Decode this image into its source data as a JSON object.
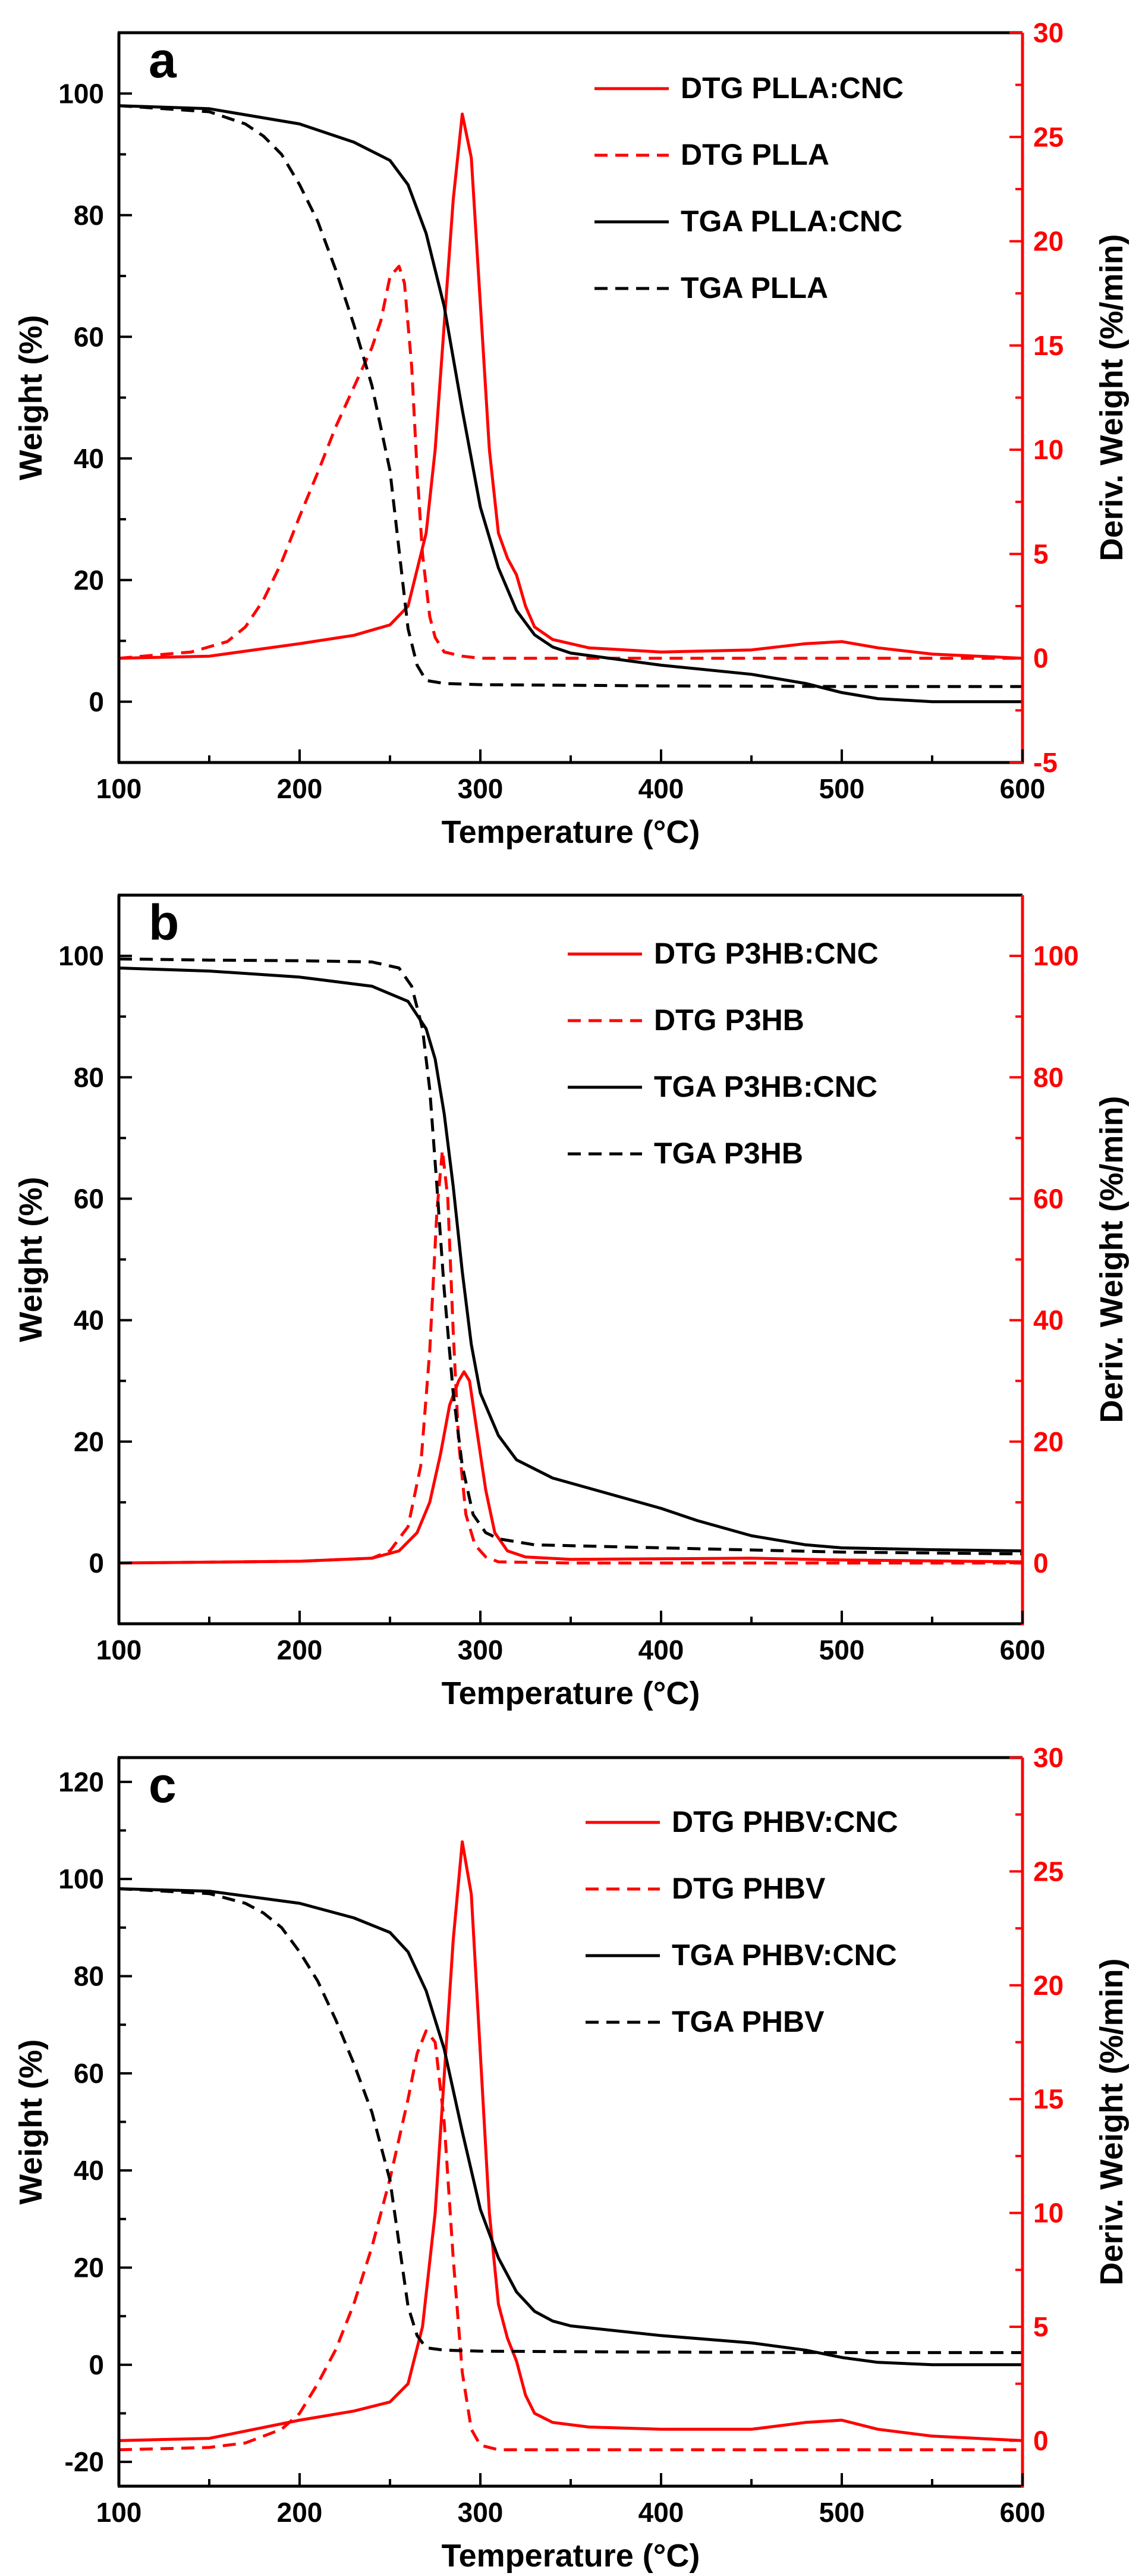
{
  "colors": {
    "tga": "#000000",
    "dtg": "#ff0000",
    "background": "#ffffff"
  },
  "chart_data": [
    {
      "type": "line",
      "panel_label": "a",
      "xlabel": "Temperature (°C)",
      "ylabel": "Weight (%)",
      "ylabel_right": "Deriv. Weight (%/min)",
      "xlim": [
        100,
        600
      ],
      "ylim": [
        -10,
        110
      ],
      "ylim_right": [
        -5,
        30
      ],
      "xticks": [
        100,
        200,
        300,
        400,
        500,
        600
      ],
      "xtick_labels": [
        "100",
        "200",
        "300",
        "400",
        "500",
        "600"
      ],
      "yticks": [
        0,
        20,
        40,
        60,
        80,
        100
      ],
      "ytick_labels": [
        "0",
        "20",
        "40",
        "60",
        "80",
        "100"
      ],
      "yticks_right": [
        -5,
        0,
        5,
        10,
        15,
        20,
        25,
        30
      ],
      "ytick_labels_right": [
        "-5",
        "0",
        "5",
        "10",
        "15",
        "20",
        "25",
        "30"
      ],
      "legend_position": "top-right",
      "series": [
        {
          "name": "DTG PLLA:CNC",
          "axis": "right",
          "color": "#ff0000",
          "dash": "solid",
          "x": [
            100,
            150,
            200,
            230,
            250,
            260,
            270,
            275,
            280,
            285,
            290,
            295,
            300,
            305,
            310,
            315,
            320,
            325,
            330,
            340,
            360,
            400,
            450,
            480,
            500,
            520,
            550,
            600
          ],
          "y": [
            0.0,
            0.1,
            0.7,
            1.1,
            1.6,
            2.5,
            6.0,
            10.0,
            16.0,
            22.0,
            26.1,
            24.0,
            17.0,
            10.0,
            6.0,
            4.8,
            4.0,
            2.5,
            1.5,
            0.9,
            0.5,
            0.3,
            0.4,
            0.7,
            0.8,
            0.5,
            0.2,
            0.0
          ]
        },
        {
          "name": "DTG PLLA",
          "axis": "right",
          "color": "#ff0000",
          "dash": "dashed",
          "x": [
            100,
            140,
            160,
            170,
            180,
            190,
            200,
            210,
            220,
            230,
            240,
            245,
            250,
            255,
            258,
            262,
            265,
            268,
            272,
            275,
            280,
            290,
            300,
            400,
            500,
            600
          ],
          "y": [
            0.0,
            0.3,
            0.8,
            1.5,
            2.8,
            4.6,
            6.8,
            8.9,
            11.1,
            13.0,
            14.9,
            16.2,
            18.3,
            18.8,
            18.0,
            14.0,
            9.0,
            5.0,
            2.0,
            1.0,
            0.3,
            0.1,
            0.0,
            0.0,
            0.0,
            0.0
          ]
        },
        {
          "name": "TGA PLLA:CNC",
          "axis": "left",
          "color": "#000000",
          "dash": "solid",
          "x": [
            100,
            150,
            200,
            230,
            250,
            260,
            270,
            280,
            290,
            300,
            310,
            320,
            330,
            340,
            350,
            400,
            450,
            480,
            500,
            520,
            550,
            600
          ],
          "y": [
            98.0,
            97.5,
            95.0,
            92.0,
            89.0,
            85.0,
            77.0,
            65.0,
            48.0,
            32.0,
            22.0,
            15.0,
            11.0,
            9.0,
            8.0,
            6.0,
            4.5,
            3.0,
            1.5,
            0.5,
            0.0,
            0.0
          ]
        },
        {
          "name": "TGA PLLA",
          "axis": "left",
          "color": "#000000",
          "dash": "dashed",
          "x": [
            100,
            150,
            170,
            180,
            190,
            200,
            210,
            220,
            230,
            240,
            250,
            255,
            260,
            265,
            270,
            280,
            300,
            400,
            500,
            600
          ],
          "y": [
            98.0,
            97.0,
            95.0,
            93.0,
            90.0,
            85.0,
            79.0,
            71.0,
            62.0,
            52.0,
            38.0,
            25.0,
            12.0,
            6.0,
            3.5,
            3.0,
            2.8,
            2.6,
            2.5,
            2.5
          ]
        }
      ]
    },
    {
      "type": "line",
      "panel_label": "b",
      "xlabel": "Temperature (°C)",
      "ylabel": "Weight (%)",
      "ylabel_right": "Deriv. Weight (%/min)",
      "xlim": [
        100,
        600
      ],
      "ylim": [
        -10,
        110
      ],
      "ylim_right": [
        -10,
        110
      ],
      "xticks": [
        100,
        200,
        300,
        400,
        500,
        600
      ],
      "xtick_labels": [
        "100",
        "200",
        "300",
        "400",
        "500",
        "600"
      ],
      "yticks": [
        0,
        20,
        40,
        60,
        80,
        100
      ],
      "ytick_labels": [
        "0",
        "20",
        "40",
        "60",
        "80",
        "100"
      ],
      "yticks_right": [
        0,
        20,
        40,
        60,
        80,
        100
      ],
      "ytick_labels_right": [
        "0",
        "20",
        "40",
        "60",
        "80",
        "100"
      ],
      "legend_position": "top-right",
      "series": [
        {
          "name": "DTG P3HB:CNC",
          "axis": "right",
          "color": "#ff0000",
          "dash": "solid",
          "x": [
            100,
            200,
            240,
            255,
            265,
            272,
            278,
            283,
            288,
            291,
            294,
            298,
            303,
            308,
            315,
            325,
            350,
            400,
            450,
            500,
            600
          ],
          "y": [
            0.0,
            0.3,
            0.8,
            2.0,
            5.0,
            10.0,
            18.0,
            26.0,
            30.0,
            31.5,
            30.0,
            22.0,
            12.0,
            5.0,
            2.0,
            1.0,
            0.6,
            0.7,
            0.8,
            0.5,
            0.2
          ]
        },
        {
          "name": "DTG P3HB",
          "axis": "right",
          "color": "#ff0000",
          "dash": "dashed",
          "x": [
            100,
            200,
            240,
            250,
            260,
            267,
            272,
            276,
            279,
            282,
            285,
            288,
            292,
            297,
            303,
            310,
            350,
            400,
            500,
            600
          ],
          "y": [
            0.0,
            0.3,
            0.8,
            2.0,
            6.0,
            16.0,
            35.0,
            58.0,
            68.0,
            60.0,
            38.0,
            20.0,
            8.0,
            3.0,
            1.0,
            0.2,
            0.0,
            0.0,
            0.0,
            0.0
          ]
        },
        {
          "name": "TGA P3HB:CNC",
          "axis": "left",
          "color": "#000000",
          "dash": "solid",
          "x": [
            100,
            150,
            200,
            240,
            260,
            270,
            275,
            280,
            285,
            290,
            295,
            300,
            310,
            320,
            340,
            370,
            400,
            420,
            450,
            480,
            500,
            550,
            600
          ],
          "y": [
            98.0,
            97.5,
            96.5,
            95.0,
            92.5,
            88.0,
            83.0,
            74.0,
            62.0,
            48.0,
            36.0,
            28.0,
            21.0,
            17.0,
            14.0,
            11.5,
            9.0,
            7.0,
            4.5,
            3.0,
            2.5,
            2.2,
            2.0
          ]
        },
        {
          "name": "TGA P3HB",
          "axis": "left",
          "color": "#000000",
          "dash": "dashed",
          "x": [
            100,
            150,
            200,
            240,
            255,
            262,
            268,
            272,
            276,
            280,
            285,
            290,
            296,
            303,
            310,
            330,
            400,
            500,
            600
          ],
          "y": [
            99.5,
            99.3,
            99.2,
            99.0,
            98.0,
            95.0,
            88.0,
            78.0,
            62.0,
            45.0,
            28.0,
            16.0,
            8.0,
            5.0,
            4.0,
            3.0,
            2.5,
            1.8,
            1.5
          ]
        }
      ]
    },
    {
      "type": "line",
      "panel_label": "c",
      "xlabel": "Temperature (°C)",
      "ylabel": "Weight (%)",
      "ylabel_right": "Deriv. Weight (%/min)",
      "xlim": [
        100,
        600
      ],
      "ylim": [
        -25,
        125
      ],
      "ylim_right": [
        -2,
        30
      ],
      "xticks": [
        100,
        200,
        300,
        400,
        500,
        600
      ],
      "xtick_labels": [
        "100",
        "200",
        "300",
        "400",
        "500",
        "600"
      ],
      "yticks": [
        -20,
        0,
        20,
        40,
        60,
        80,
        100,
        120
      ],
      "ytick_labels": [
        "-20",
        "0",
        "20",
        "40",
        "60",
        "80",
        "100",
        "120"
      ],
      "yticks_right": [
        0,
        5,
        10,
        15,
        20,
        25,
        30
      ],
      "ytick_labels_right": [
        "0",
        "5",
        "10",
        "15",
        "20",
        "25",
        "30"
      ],
      "legend_position": "top-right",
      "series": [
        {
          "name": "DTG PHBV:CNC",
          "axis": "right",
          "color": "#ff0000",
          "dash": "solid",
          "x": [
            100,
            150,
            200,
            230,
            250,
            260,
            268,
            275,
            280,
            285,
            290,
            295,
            300,
            305,
            310,
            315,
            320,
            325,
            330,
            340,
            360,
            400,
            450,
            480,
            500,
            520,
            550,
            600
          ],
          "y": [
            0.0,
            0.1,
            0.9,
            1.3,
            1.7,
            2.5,
            5.0,
            10.0,
            16.0,
            22.0,
            26.3,
            24.0,
            17.0,
            10.0,
            6.0,
            4.5,
            3.5,
            2.0,
            1.2,
            0.8,
            0.6,
            0.5,
            0.5,
            0.8,
            0.9,
            0.5,
            0.2,
            0.0
          ]
        },
        {
          "name": "DTG PHBV",
          "axis": "right",
          "color": "#ff0000",
          "dash": "dashed",
          "x": [
            100,
            150,
            170,
            180,
            190,
            200,
            210,
            220,
            230,
            240,
            250,
            260,
            265,
            270,
            275,
            280,
            285,
            290,
            295,
            300,
            310,
            350,
            400,
            500,
            600
          ],
          "y": [
            -0.4,
            -0.3,
            -0.1,
            0.2,
            0.5,
            1.2,
            2.5,
            4.0,
            6.0,
            8.5,
            11.5,
            15.0,
            17.0,
            18.0,
            17.5,
            14.0,
            8.0,
            3.0,
            0.5,
            -0.2,
            -0.4,
            -0.4,
            -0.4,
            -0.4,
            -0.4
          ]
        },
        {
          "name": "TGA PHBV:CNC",
          "axis": "left",
          "color": "#000000",
          "dash": "solid",
          "x": [
            100,
            150,
            200,
            230,
            250,
            260,
            270,
            280,
            290,
            300,
            310,
            320,
            330,
            340,
            350,
            400,
            450,
            480,
            500,
            520,
            550,
            600
          ],
          "y": [
            98.0,
            97.5,
            95.0,
            92.0,
            89.0,
            85.0,
            77.0,
            65.0,
            48.0,
            32.0,
            22.0,
            15.0,
            11.0,
            9.0,
            8.0,
            6.0,
            4.5,
            3.0,
            1.5,
            0.5,
            0.0,
            0.0
          ]
        },
        {
          "name": "TGA PHBV",
          "axis": "left",
          "color": "#000000",
          "dash": "dashed",
          "x": [
            100,
            150,
            170,
            180,
            190,
            200,
            210,
            220,
            230,
            240,
            250,
            255,
            260,
            265,
            270,
            280,
            300,
            400,
            500,
            600
          ],
          "y": [
            98.0,
            97.0,
            95.0,
            93.0,
            90.0,
            85.0,
            79.0,
            71.0,
            62.0,
            52.0,
            38.0,
            25.0,
            12.0,
            6.0,
            3.5,
            3.0,
            2.8,
            2.6,
            2.5,
            2.5
          ]
        }
      ]
    }
  ]
}
